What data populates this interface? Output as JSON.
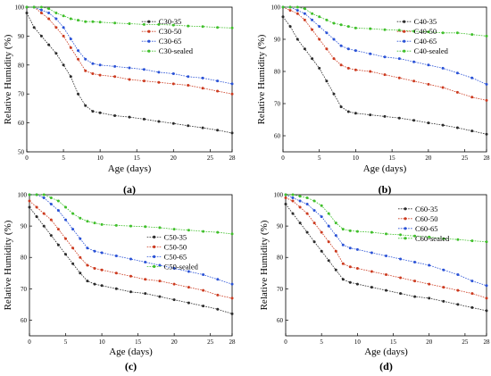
{
  "colors": {
    "c35": "#2b2b2b",
    "c50": "#cc3a1f",
    "c65": "#2a52d6",
    "sealed": "#3fbf2a",
    "axis": "#000000"
  },
  "chart_data": [
    {
      "panel": "(a)",
      "type": "scatter",
      "xlabel": "Age (days)",
      "ylabel": "Relative Humidity (%)",
      "xlim": [
        0,
        28
      ],
      "ylim": [
        50,
        100
      ],
      "xticks": [
        0,
        5,
        10,
        15,
        20,
        25,
        28
      ],
      "yticks": [
        50,
        60,
        70,
        80,
        90,
        100
      ],
      "legend_position": "top-right",
      "series": [
        {
          "name": "C30-35",
          "color_key": "c35",
          "x": [
            0,
            1,
            2,
            3,
            4,
            5,
            6,
            7,
            8,
            9,
            10,
            12,
            14,
            16,
            18,
            20,
            22,
            24,
            26,
            28
          ],
          "y": [
            98,
            93,
            90,
            87,
            84,
            80,
            76,
            70,
            66,
            64,
            63.5,
            62.5,
            62,
            61.3,
            60.5,
            59.8,
            59,
            58.3,
            57.5,
            56.5
          ]
        },
        {
          "name": "C30-50",
          "color_key": "c50",
          "x": [
            0,
            1,
            2,
            3,
            4,
            5,
            6,
            7,
            8,
            9,
            10,
            12,
            14,
            16,
            18,
            20,
            22,
            24,
            26,
            28
          ],
          "y": [
            100,
            100,
            98,
            96,
            93,
            90,
            86,
            82,
            78,
            77,
            76.5,
            76,
            75,
            74.5,
            74,
            73.5,
            73,
            72,
            71,
            70
          ]
        },
        {
          "name": "C30-65",
          "color_key": "c65",
          "x": [
            0,
            1,
            2,
            3,
            4,
            5,
            6,
            7,
            8,
            9,
            10,
            12,
            14,
            16,
            18,
            20,
            22,
            24,
            26,
            28
          ],
          "y": [
            100,
            100,
            99,
            98,
            96,
            93,
            89,
            85,
            82,
            80.5,
            80,
            79.5,
            79,
            78.5,
            77.5,
            77,
            76,
            75.5,
            74.5,
            73.5
          ]
        },
        {
          "name": "C30-sealed",
          "color_key": "sealed",
          "x": [
            0,
            1,
            2,
            3,
            4,
            5,
            6,
            7,
            8,
            9,
            10,
            12,
            14,
            16,
            18,
            20,
            22,
            24,
            26,
            28
          ],
          "y": [
            100,
            100,
            100,
            99.5,
            98,
            97,
            96,
            95.5,
            95,
            95,
            94.8,
            94.5,
            94.3,
            94,
            94,
            93.8,
            93.5,
            93.3,
            93,
            92.8
          ]
        }
      ]
    },
    {
      "panel": "(b)",
      "type": "scatter",
      "xlabel": "Age (days)",
      "ylabel": "Relative Humidity (%)",
      "xlim": [
        0,
        28
      ],
      "ylim": [
        55,
        100
      ],
      "xticks": [
        0,
        5,
        10,
        15,
        20,
        25,
        28
      ],
      "yticks": [
        60,
        70,
        80,
        90,
        100
      ],
      "legend_position": "top-right",
      "series": [
        {
          "name": "C40-35",
          "color_key": "c35",
          "x": [
            0,
            1,
            2,
            3,
            4,
            5,
            6,
            7,
            8,
            9,
            10,
            12,
            14,
            16,
            18,
            20,
            22,
            24,
            26,
            28
          ],
          "y": [
            97,
            94,
            90,
            87,
            84,
            81,
            77,
            73,
            69,
            67.5,
            67,
            66.5,
            66,
            65.5,
            64.8,
            64,
            63.3,
            62.5,
            61.5,
            60.5
          ]
        },
        {
          "name": "C40-50",
          "color_key": "c50",
          "x": [
            0,
            1,
            2,
            3,
            4,
            5,
            6,
            7,
            8,
            9,
            10,
            12,
            14,
            16,
            18,
            20,
            22,
            24,
            26,
            28
          ],
          "y": [
            100,
            99,
            98,
            96,
            93,
            90,
            87,
            84,
            82,
            81,
            80.5,
            80,
            79,
            78,
            77,
            76,
            75,
            73.5,
            72,
            71
          ]
        },
        {
          "name": "C40-65",
          "color_key": "c65",
          "x": [
            0,
            1,
            2,
            3,
            4,
            5,
            6,
            7,
            8,
            9,
            10,
            12,
            14,
            16,
            18,
            20,
            22,
            24,
            26,
            28
          ],
          "y": [
            100,
            100,
            99,
            98,
            96,
            94,
            92,
            90,
            88,
            87,
            86.5,
            85.5,
            84.5,
            84,
            83,
            82,
            81,
            79.5,
            78,
            76
          ]
        },
        {
          "name": "C40-sealed",
          "color_key": "sealed",
          "x": [
            0,
            1,
            2,
            3,
            4,
            5,
            6,
            7,
            8,
            9,
            10,
            12,
            14,
            16,
            18,
            20,
            22,
            24,
            26,
            28
          ],
          "y": [
            100,
            100,
            100,
            99.5,
            98,
            97,
            96,
            95,
            94.5,
            94,
            93.5,
            93.3,
            93,
            92.8,
            92.5,
            92.3,
            92,
            92,
            91.5,
            91
          ]
        }
      ]
    },
    {
      "panel": "(c)",
      "type": "scatter",
      "xlabel": "Age (days)",
      "ylabel": "Relative Humidity (%)",
      "xlim": [
        0,
        28
      ],
      "ylim": [
        55,
        100
      ],
      "xticks": [
        0,
        5,
        10,
        15,
        20,
        25,
        28
      ],
      "yticks": [
        60,
        70,
        80,
        90,
        100
      ],
      "legend_position": "right",
      "series": [
        {
          "name": "C50-35",
          "color_key": "c35",
          "x": [
            0,
            1,
            2,
            3,
            4,
            5,
            6,
            7,
            8,
            9,
            10,
            12,
            14,
            16,
            18,
            20,
            22,
            24,
            26,
            28
          ],
          "y": [
            96,
            93,
            90,
            87,
            84,
            81,
            78,
            75,
            72.5,
            71.5,
            71,
            70,
            69,
            68.5,
            67.5,
            66.5,
            65.5,
            64.5,
            63.5,
            62
          ]
        },
        {
          "name": "C50-50",
          "color_key": "c50",
          "x": [
            0,
            1,
            2,
            3,
            4,
            5,
            6,
            7,
            8,
            9,
            10,
            12,
            14,
            16,
            18,
            20,
            22,
            24,
            26,
            28
          ],
          "y": [
            98,
            96,
            94,
            92,
            89,
            86,
            83,
            80,
            77.5,
            76.5,
            76,
            75,
            74,
            73,
            72.5,
            71.5,
            70.5,
            69.5,
            68,
            67
          ]
        },
        {
          "name": "C50-65",
          "color_key": "c65",
          "x": [
            0,
            1,
            2,
            3,
            4,
            5,
            6,
            7,
            8,
            9,
            10,
            12,
            14,
            16,
            18,
            20,
            22,
            24,
            26,
            28
          ],
          "y": [
            100,
            100,
            99,
            97,
            95,
            92,
            89,
            86,
            83,
            82,
            81.5,
            80.5,
            79.5,
            78.5,
            77.5,
            76.5,
            75.5,
            74.5,
            73,
            71.5
          ]
        },
        {
          "name": "C50-sealed",
          "color_key": "sealed",
          "x": [
            0,
            1,
            2,
            3,
            4,
            5,
            6,
            7,
            8,
            9,
            10,
            12,
            14,
            16,
            18,
            20,
            22,
            24,
            26,
            28
          ],
          "y": [
            100,
            100,
            100,
            99,
            98,
            96,
            94,
            92.5,
            91.5,
            91,
            90.5,
            90.2,
            90,
            89.8,
            89.5,
            89,
            88.7,
            88.3,
            88,
            87.5
          ]
        }
      ]
    },
    {
      "panel": "(d)",
      "type": "scatter",
      "xlabel": "Age (days)",
      "ylabel": "Relative Humidity (%)",
      "xlim": [
        0,
        28
      ],
      "ylim": [
        55,
        100
      ],
      "xticks": [
        0,
        5,
        10,
        15,
        20,
        25,
        28
      ],
      "yticks": [
        60,
        70,
        80,
        90,
        100
      ],
      "legend_position": "top-right",
      "series": [
        {
          "name": "C60-35",
          "color_key": "c35",
          "x": [
            0,
            1,
            2,
            3,
            4,
            5,
            6,
            7,
            8,
            9,
            10,
            12,
            14,
            16,
            18,
            20,
            22,
            24,
            26,
            28
          ],
          "y": [
            97,
            94,
            91,
            88,
            85,
            82,
            79,
            76,
            73,
            72,
            71.5,
            70.5,
            69.5,
            68.5,
            67.5,
            67,
            66,
            65,
            64,
            63
          ]
        },
        {
          "name": "C60-50",
          "color_key": "c50",
          "x": [
            0,
            1,
            2,
            3,
            4,
            5,
            6,
            7,
            8,
            9,
            10,
            12,
            14,
            16,
            18,
            20,
            22,
            24,
            26,
            28
          ],
          "y": [
            99,
            98,
            96,
            94,
            91,
            88,
            85,
            82,
            78,
            77,
            76.5,
            75.5,
            74.5,
            73.5,
            72.5,
            71.5,
            70.5,
            69.5,
            68.5,
            67
          ]
        },
        {
          "name": "C60-65",
          "color_key": "c65",
          "x": [
            0,
            1,
            2,
            3,
            4,
            5,
            6,
            7,
            8,
            9,
            10,
            12,
            14,
            16,
            18,
            20,
            22,
            24,
            26,
            28
          ],
          "y": [
            100,
            99,
            98,
            97,
            95,
            93,
            90,
            87,
            84,
            83,
            82.5,
            81.5,
            80.5,
            79.5,
            78.5,
            77.5,
            76,
            74.5,
            72.5,
            71
          ]
        },
        {
          "name": "C60-sealed",
          "color_key": "sealed",
          "x": [
            0,
            1,
            2,
            3,
            4,
            5,
            6,
            7,
            8,
            9,
            10,
            12,
            14,
            16,
            18,
            20,
            22,
            24,
            26,
            28
          ],
          "y": [
            100,
            100,
            99.5,
            99,
            98,
            96.5,
            94,
            91,
            89,
            88.5,
            88.3,
            88,
            87.5,
            87.2,
            86.8,
            86.5,
            86,
            85.7,
            85.3,
            85
          ]
        }
      ]
    }
  ]
}
